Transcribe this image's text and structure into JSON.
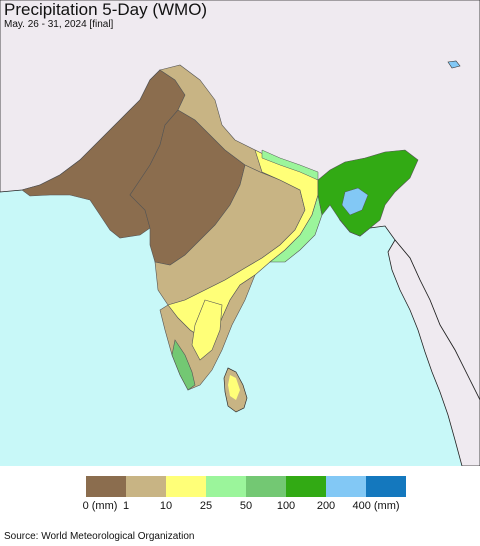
{
  "header": {
    "title": "Precipitation 5-Day (WMO)",
    "subtitle": "May. 26 - 31, 2024 [final]"
  },
  "legend": {
    "bins": [
      {
        "color": "#8b6d4e",
        "label": "0 (mm)"
      },
      {
        "color": "#c8b484",
        "label": "1"
      },
      {
        "color": "#ffff78",
        "label": "10"
      },
      {
        "color": "#9bf59b",
        "label": "25"
      },
      {
        "color": "#73c873",
        "label": "50"
      },
      {
        "color": "#32aa14",
        "label": "100"
      },
      {
        "color": "#82c8f5",
        "label": "200"
      },
      {
        "color": "#1478be",
        "label": "400 (mm)"
      }
    ]
  },
  "colors": {
    "ocean": "#c8f8f8",
    "outside_land": "#efeaf0",
    "border": "#222222"
  },
  "footer": {
    "source": "Source: World Meteorological Organization"
  }
}
